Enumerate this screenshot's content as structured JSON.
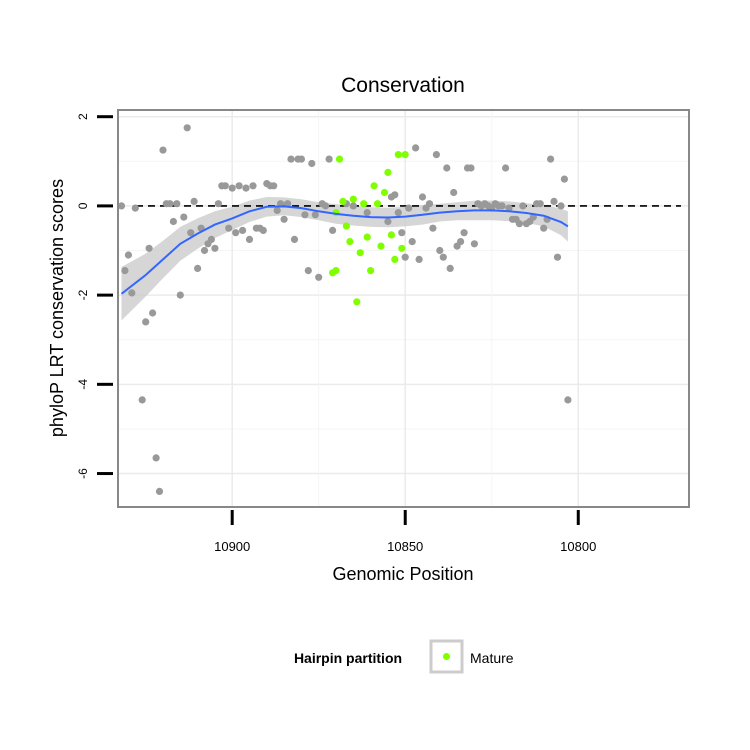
{
  "chart_data": {
    "type": "scatter",
    "title": "Conservation",
    "xlabel": "Genomic Position",
    "ylabel": "phyloP LRT conservation scores",
    "x_reversed": true,
    "xlim": [
      10933,
      10768
    ],
    "ylim": [
      -6.75,
      2.15
    ],
    "x_ticks": [
      10900,
      10850,
      10800
    ],
    "y_ticks": [
      2,
      0,
      -2,
      -4,
      -6
    ],
    "reference_line": {
      "y": 0,
      "style": "dashed"
    },
    "grid": true,
    "legend": {
      "title": "Hairpin partition",
      "position": "bottom",
      "entries": [
        "Mature"
      ]
    },
    "colors": {
      "other": "#999999",
      "mature": "#7fff00",
      "smooth": "#3366ff",
      "band": "#cccccc"
    },
    "series": [
      {
        "name": "",
        "color": "#999999",
        "points": [
          [
            10932,
            0.0
          ],
          [
            10931,
            -1.45
          ],
          [
            10930,
            -1.1
          ],
          [
            10929,
            -1.95
          ],
          [
            10928,
            -0.05
          ],
          [
            10926,
            -4.35
          ],
          [
            10925,
            -2.6
          ],
          [
            10924,
            -0.95
          ],
          [
            10923,
            -2.4
          ],
          [
            10922,
            -5.65
          ],
          [
            10921,
            -6.4
          ],
          [
            10920,
            1.25
          ],
          [
            10919,
            0.05
          ],
          [
            10918,
            0.05
          ],
          [
            10917,
            -0.35
          ],
          [
            10916,
            0.05
          ],
          [
            10915,
            -2.0
          ],
          [
            10914,
            -0.25
          ],
          [
            10913,
            1.75
          ],
          [
            10912,
            -0.6
          ],
          [
            10911,
            0.1
          ],
          [
            10910,
            -1.4
          ],
          [
            10909,
            -0.5
          ],
          [
            10908,
            -1.0
          ],
          [
            10907,
            -0.85
          ],
          [
            10906,
            -0.75
          ],
          [
            10905,
            -0.95
          ],
          [
            10904,
            0.05
          ],
          [
            10903,
            0.45
          ],
          [
            10902,
            0.45
          ],
          [
            10901,
            -0.5
          ],
          [
            10900,
            0.4
          ],
          [
            10899,
            -0.6
          ],
          [
            10898,
            0.45
          ],
          [
            10897,
            -0.55
          ],
          [
            10896,
            0.4
          ],
          [
            10895,
            -0.75
          ],
          [
            10894,
            0.45
          ],
          [
            10893,
            -0.5
          ],
          [
            10892,
            -0.5
          ],
          [
            10891,
            -0.55
          ],
          [
            10890,
            0.5
          ],
          [
            10889,
            0.45
          ],
          [
            10888,
            0.45
          ],
          [
            10887,
            -0.1
          ],
          [
            10886,
            0.05
          ],
          [
            10885,
            -0.3
          ],
          [
            10884,
            0.05
          ],
          [
            10883,
            1.05
          ],
          [
            10882,
            -0.75
          ],
          [
            10881,
            1.05
          ],
          [
            10880,
            1.05
          ],
          [
            10879,
            -0.2
          ],
          [
            10878,
            -1.45
          ],
          [
            10877,
            0.95
          ],
          [
            10876,
            -0.2
          ],
          [
            10875,
            -1.6
          ],
          [
            10874,
            0.05
          ],
          [
            10873,
            0.0
          ],
          [
            10872,
            1.05
          ],
          [
            10871,
            -0.55
          ],
          [
            10867,
            0.05
          ],
          [
            10865,
            0.0
          ],
          [
            10861,
            -0.15
          ],
          [
            10855,
            -0.35
          ],
          [
            10854,
            0.2
          ],
          [
            10853,
            0.25
          ],
          [
            10852,
            -0.15
          ],
          [
            10851,
            -0.6
          ],
          [
            10850,
            -1.15
          ],
          [
            10849,
            -0.05
          ],
          [
            10848,
            -0.8
          ],
          [
            10847,
            1.3
          ],
          [
            10846,
            -1.2
          ],
          [
            10845,
            0.2
          ],
          [
            10844,
            -0.05
          ],
          [
            10843,
            0.05
          ],
          [
            10842,
            -0.5
          ],
          [
            10841,
            1.15
          ],
          [
            10840,
            -1.0
          ],
          [
            10839,
            -1.15
          ],
          [
            10838,
            0.85
          ],
          [
            10837,
            -1.4
          ],
          [
            10836,
            0.3
          ],
          [
            10835,
            -0.9
          ],
          [
            10834,
            -0.8
          ],
          [
            10833,
            -0.6
          ],
          [
            10832,
            0.85
          ],
          [
            10831,
            0.85
          ],
          [
            10830,
            -0.85
          ],
          [
            10829,
            0.05
          ],
          [
            10828,
            0.0
          ],
          [
            10827,
            0.05
          ],
          [
            10826,
            0.0
          ],
          [
            10825,
            -0.05
          ],
          [
            10824,
            0.05
          ],
          [
            10823,
            0.0
          ],
          [
            10822,
            0.0
          ],
          [
            10821,
            0.85
          ],
          [
            10820,
            -0.05
          ],
          [
            10819,
            -0.3
          ],
          [
            10818,
            -0.3
          ],
          [
            10817,
            -0.4
          ],
          [
            10816,
            0.0
          ],
          [
            10815,
            -0.4
          ],
          [
            10814,
            -0.35
          ],
          [
            10813,
            -0.25
          ],
          [
            10812,
            0.05
          ],
          [
            10811,
            0.05
          ],
          [
            10810,
            -0.5
          ],
          [
            10809,
            -0.3
          ],
          [
            10808,
            1.05
          ],
          [
            10807,
            0.1
          ],
          [
            10806,
            -1.15
          ],
          [
            10805,
            0.0
          ],
          [
            10804,
            0.6
          ],
          [
            10803,
            -4.35
          ]
        ]
      },
      {
        "name": "Mature",
        "color": "#7fff00",
        "points": [
          [
            10870,
            -0.15
          ],
          [
            10869,
            1.05
          ],
          [
            10868,
            0.1
          ],
          [
            10867,
            -0.45
          ],
          [
            10866,
            -0.8
          ],
          [
            10865,
            0.15
          ],
          [
            10864,
            -2.15
          ],
          [
            10863,
            -1.05
          ],
          [
            10862,
            0.05
          ],
          [
            10861,
            -0.7
          ],
          [
            10860,
            -1.45
          ],
          [
            10859,
            0.45
          ],
          [
            10858,
            0.05
          ],
          [
            10857,
            -0.9
          ],
          [
            10856,
            0.3
          ],
          [
            10855,
            0.75
          ],
          [
            10854,
            -0.65
          ],
          [
            10853,
            -1.2
          ],
          [
            10852,
            1.15
          ],
          [
            10851,
            -0.95
          ],
          [
            10850,
            1.15
          ],
          [
            10871,
            -1.5
          ],
          [
            10870,
            -1.45
          ]
        ]
      }
    ],
    "smooth_curve": {
      "x": [
        10932,
        10925,
        10920,
        10915,
        10910,
        10905,
        10900,
        10895,
        10890,
        10885,
        10880,
        10875,
        10870,
        10865,
        10860,
        10855,
        10850,
        10845,
        10840,
        10835,
        10830,
        10825,
        10820,
        10815,
        10810,
        10805,
        10803
      ],
      "y": [
        -1.97,
        -1.55,
        -1.2,
        -0.85,
        -0.62,
        -0.42,
        -0.28,
        -0.12,
        -0.02,
        -0.01,
        -0.05,
        -0.12,
        -0.18,
        -0.22,
        -0.25,
        -0.26,
        -0.24,
        -0.2,
        -0.15,
        -0.12,
        -0.1,
        -0.1,
        -0.12,
        -0.16,
        -0.22,
        -0.36,
        -0.46
      ],
      "se": [
        0.6,
        0.48,
        0.42,
        0.38,
        0.34,
        0.3,
        0.26,
        0.24,
        0.22,
        0.2,
        0.2,
        0.2,
        0.22,
        0.22,
        0.22,
        0.22,
        0.22,
        0.22,
        0.2,
        0.2,
        0.22,
        0.22,
        0.22,
        0.22,
        0.24,
        0.3,
        0.34
      ]
    }
  }
}
